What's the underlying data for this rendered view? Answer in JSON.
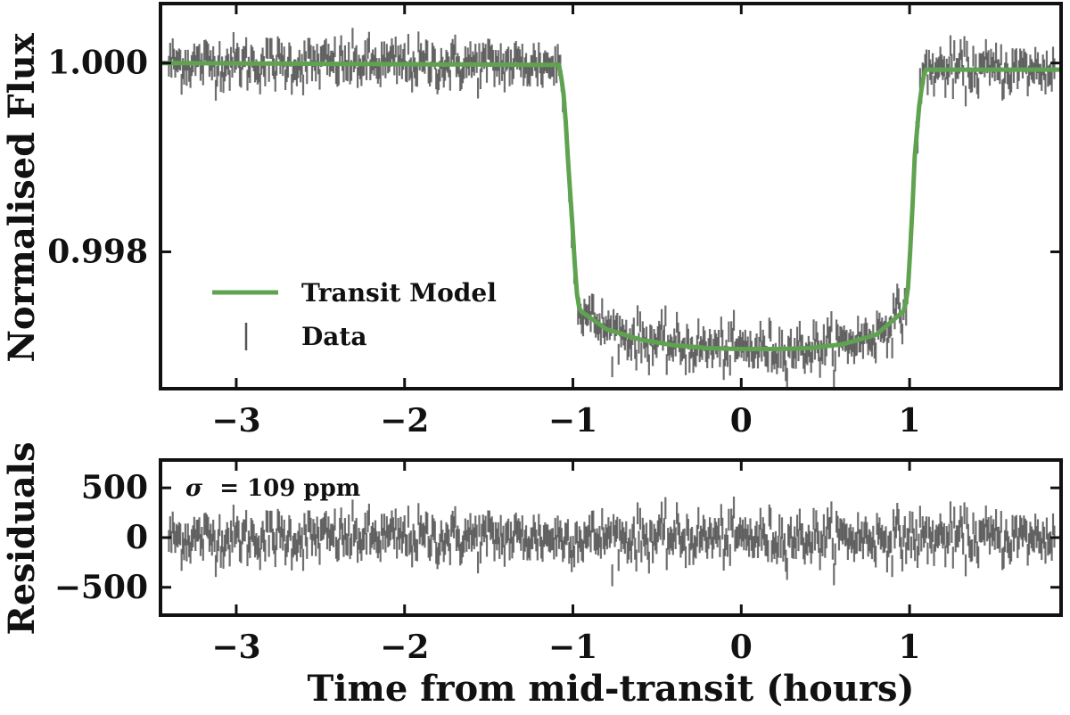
{
  "colors": {
    "model": "#5fa350",
    "data": "#555555",
    "axes": "#111111"
  },
  "chart_data": [
    {
      "type": "scatter",
      "panel": "top",
      "ylabel": "Normalised Flux",
      "xlim": [
        -3.45,
        1.9
      ],
      "ylim": [
        0.99655,
        1.00063
      ],
      "xticks": [
        -3,
        -2,
        -1,
        0,
        1
      ],
      "xtick_labels": [
        "−3",
        "−2",
        "−1",
        "0",
        "1"
      ],
      "yticks": [
        1.0,
        0.998
      ],
      "ytick_labels": [
        "1.000",
        "0.998"
      ],
      "legend": {
        "position": "lower-left",
        "entries": [
          {
            "label": "Transit Model",
            "marker": "line"
          },
          {
            "label": "Data",
            "marker": "errorbar"
          }
        ]
      },
      "series": [
        {
          "name": "Transit Model",
          "kind": "line",
          "x": [
            -3.45,
            -1.08,
            -1.05,
            -1.03,
            -1.0,
            -0.98,
            -0.96,
            -0.8,
            -0.6,
            -0.4,
            -0.2,
            0.0,
            0.2,
            0.4,
            0.6,
            0.8,
            0.97,
            0.99,
            1.01,
            1.03,
            1.06,
            1.09,
            1.9
          ],
          "y": [
            1.0,
            0.99998,
            0.9996,
            0.999,
            0.9982,
            0.9976,
            0.99738,
            0.99718,
            0.99707,
            0.99701,
            0.99698,
            0.99697,
            0.99697,
            0.99698,
            0.99702,
            0.99712,
            0.99738,
            0.9976,
            0.9982,
            0.999,
            0.9996,
            0.99993,
            0.99993
          ]
        },
        {
          "name": "Data",
          "kind": "errorbar",
          "n_points": 700,
          "yerr": 0.00011,
          "scatter_sd": 0.00011
        }
      ]
    },
    {
      "type": "scatter",
      "panel": "bottom",
      "xlabel": "Time from mid-transit (hours)",
      "ylabel": "Residuals",
      "xlim": [
        -3.45,
        1.9
      ],
      "ylim": [
        -780,
        780
      ],
      "xticks": [
        -3,
        -2,
        -1,
        0,
        1
      ],
      "xtick_labels": [
        "−3",
        "−2",
        "−1",
        "0",
        "1"
      ],
      "yticks": [
        500,
        0,
        -500
      ],
      "ytick_labels": [
        "500",
        "0",
        "−500"
      ],
      "annotation": {
        "symbol": "σ",
        "text": "= 109 ppm"
      },
      "series": [
        {
          "name": "Residuals",
          "kind": "errorbar",
          "n_points": 700,
          "yerr": 110,
          "scatter_sd": 109
        }
      ]
    }
  ]
}
